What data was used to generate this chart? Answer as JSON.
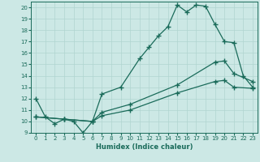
{
  "xlabel": "Humidex (Indice chaleur)",
  "xlim": [
    -0.5,
    23.5
  ],
  "ylim": [
    9,
    20.5
  ],
  "yticks": [
    9,
    10,
    11,
    12,
    13,
    14,
    15,
    16,
    17,
    18,
    19,
    20
  ],
  "xticks": [
    0,
    1,
    2,
    3,
    4,
    5,
    6,
    7,
    8,
    9,
    10,
    11,
    12,
    13,
    14,
    15,
    16,
    17,
    18,
    19,
    20,
    21,
    22,
    23
  ],
  "line_color": "#1a6b5a",
  "bg_color": "#cce8e5",
  "grid_color": "#b0d5d0",
  "series": [
    {
      "x": [
        0,
        1,
        2,
        3,
        4,
        5,
        6,
        7,
        9,
        11,
        12,
        13,
        14,
        15,
        16,
        17,
        18,
        19,
        20,
        21,
        22,
        23
      ],
      "y": [
        12,
        10.4,
        9.8,
        10.2,
        10.0,
        9.0,
        10.0,
        12.4,
        13.0,
        15.5,
        16.5,
        17.5,
        18.3,
        20.2,
        19.6,
        20.2,
        20.1,
        18.5,
        17.0,
        16.9,
        14.0,
        13.0
      ]
    },
    {
      "x": [
        0,
        3,
        6,
        7,
        10,
        15,
        19,
        20,
        21,
        23
      ],
      "y": [
        10.4,
        10.2,
        10.0,
        10.8,
        11.5,
        13.2,
        15.2,
        15.3,
        14.2,
        13.5
      ]
    },
    {
      "x": [
        0,
        3,
        6,
        7,
        10,
        15,
        19,
        20,
        21,
        23
      ],
      "y": [
        10.4,
        10.2,
        10.0,
        10.5,
        11.0,
        12.5,
        13.5,
        13.6,
        13.0,
        12.9
      ]
    }
  ]
}
